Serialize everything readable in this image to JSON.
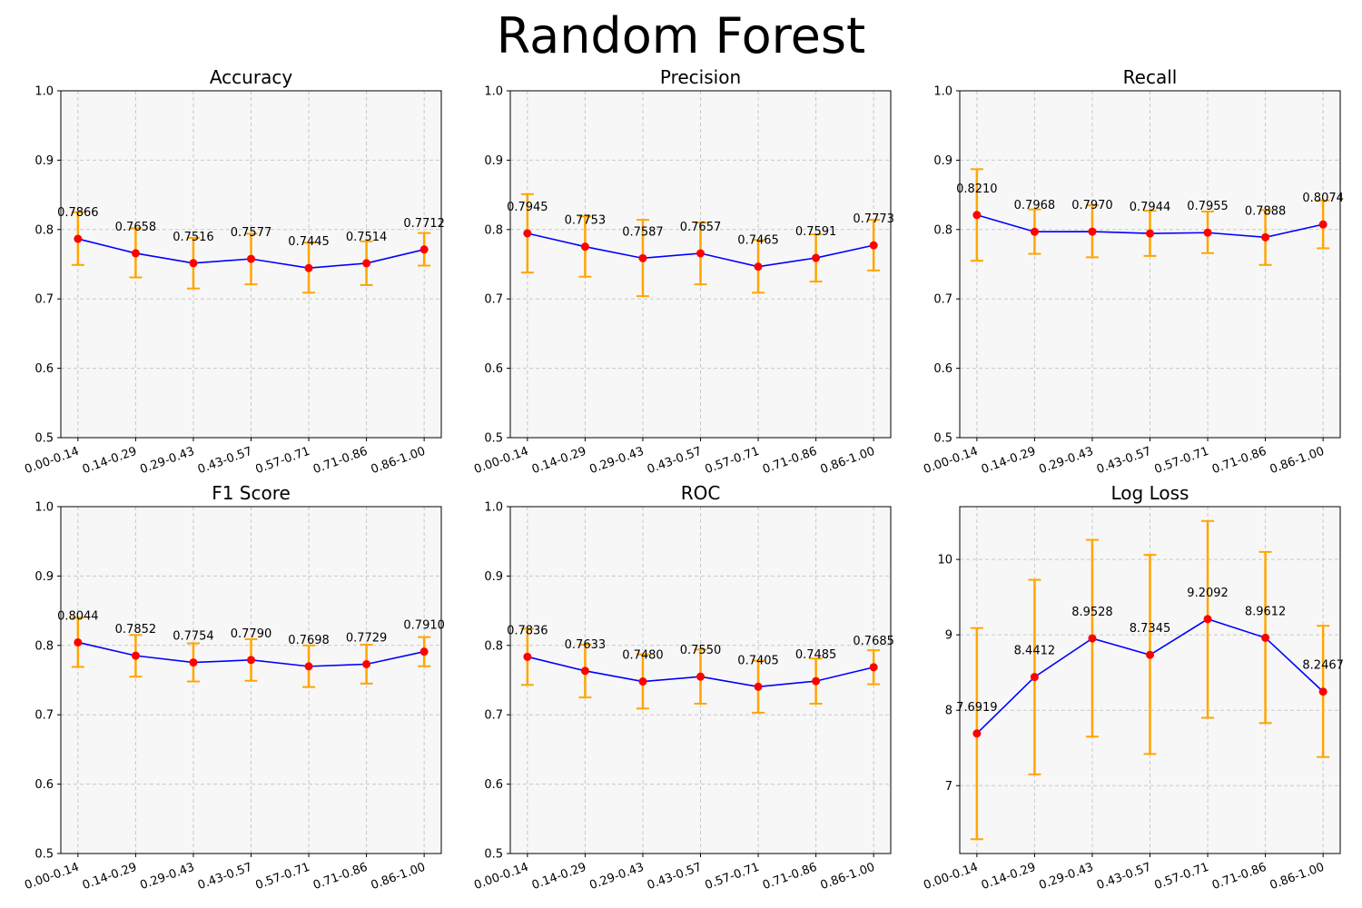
{
  "figure_title": "Random Forest",
  "colors": {
    "line": "#0000ff",
    "marker": "#ff0000",
    "errorbar": "#ffa500",
    "panel_bg": "#f7f7f7",
    "grid": "#c8c8c8"
  },
  "chart_data": [
    {
      "type": "line",
      "title": "Accuracy",
      "categories": [
        "0.00-0.14",
        "0.14-0.29",
        "0.29-0.43",
        "0.43-0.57",
        "0.57-0.71",
        "0.71-0.86",
        "0.86-1.00"
      ],
      "values": [
        0.7866,
        0.7658,
        0.7516,
        0.7577,
        0.7445,
        0.7514,
        0.7712
      ],
      "err_low": [
        0.749,
        0.731,
        0.715,
        0.721,
        0.709,
        0.72,
        0.748
      ],
      "err_high": [
        0.825,
        0.802,
        0.788,
        0.794,
        0.781,
        0.783,
        0.795
      ],
      "labels": [
        "0.7866",
        "0.7658",
        "0.7516",
        "0.7577",
        "0.7445",
        "0.7514",
        "0.7712"
      ],
      "ylim": [
        0.5,
        1.0
      ],
      "yticks": [
        "0.5",
        "0.6",
        "0.7",
        "0.8",
        "0.9",
        "1.0"
      ],
      "grid": true
    },
    {
      "type": "line",
      "title": "Precision",
      "categories": [
        "0.00-0.14",
        "0.14-0.29",
        "0.29-0.43",
        "0.43-0.57",
        "0.57-0.71",
        "0.71-0.86",
        "0.86-1.00"
      ],
      "values": [
        0.7945,
        0.7753,
        0.7587,
        0.7657,
        0.7465,
        0.7591,
        0.7773
      ],
      "err_low": [
        0.738,
        0.732,
        0.704,
        0.721,
        0.709,
        0.725,
        0.741
      ],
      "err_high": [
        0.851,
        0.819,
        0.814,
        0.81,
        0.785,
        0.793,
        0.814
      ],
      "labels": [
        "0.7945",
        "0.7753",
        "0.7587",
        "0.7657",
        "0.7465",
        "0.7591",
        "0.7773"
      ],
      "ylim": [
        0.5,
        1.0
      ],
      "yticks": [
        "0.5",
        "0.6",
        "0.7",
        "0.8",
        "0.9",
        "1.0"
      ],
      "grid": true
    },
    {
      "type": "line",
      "title": "Recall",
      "categories": [
        "0.00-0.14",
        "0.14-0.29",
        "0.29-0.43",
        "0.43-0.57",
        "0.57-0.71",
        "0.71-0.86",
        "0.86-1.00"
      ],
      "values": [
        0.821,
        0.7968,
        0.797,
        0.7944,
        0.7955,
        0.7888,
        0.8074
      ],
      "err_low": [
        0.755,
        0.765,
        0.76,
        0.762,
        0.766,
        0.749,
        0.773
      ],
      "err_high": [
        0.887,
        0.829,
        0.835,
        0.827,
        0.826,
        0.828,
        0.842
      ],
      "labels": [
        "0.8210",
        "0.7968",
        "0.7970",
        "0.7944",
        "0.7955",
        "0.7888",
        "0.8074"
      ],
      "ylim": [
        0.5,
        1.0
      ],
      "yticks": [
        "0.5",
        "0.6",
        "0.7",
        "0.8",
        "0.9",
        "1.0"
      ],
      "grid": true
    },
    {
      "type": "line",
      "title": "F1 Score",
      "categories": [
        "0.00-0.14",
        "0.14-0.29",
        "0.29-0.43",
        "0.43-0.57",
        "0.57-0.71",
        "0.71-0.86",
        "0.86-1.00"
      ],
      "values": [
        0.8044,
        0.7852,
        0.7754,
        0.779,
        0.7698,
        0.7729,
        0.791
      ],
      "err_low": [
        0.769,
        0.755,
        0.748,
        0.749,
        0.74,
        0.745,
        0.77
      ],
      "err_high": [
        0.84,
        0.815,
        0.803,
        0.809,
        0.8,
        0.801,
        0.812
      ],
      "labels": [
        "0.8044",
        "0.7852",
        "0.7754",
        "0.7790",
        "0.7698",
        "0.7729",
        "0.7910"
      ],
      "ylim": [
        0.5,
        1.0
      ],
      "yticks": [
        "0.5",
        "0.6",
        "0.7",
        "0.8",
        "0.9",
        "1.0"
      ],
      "grid": true
    },
    {
      "type": "line",
      "title": "ROC",
      "categories": [
        "0.00-0.14",
        "0.14-0.29",
        "0.29-0.43",
        "0.43-0.57",
        "0.57-0.71",
        "0.71-0.86",
        "0.86-1.00"
      ],
      "values": [
        0.7836,
        0.7633,
        0.748,
        0.755,
        0.7405,
        0.7485,
        0.7685
      ],
      "err_low": [
        0.743,
        0.725,
        0.709,
        0.716,
        0.703,
        0.716,
        0.744
      ],
      "err_high": [
        0.824,
        0.801,
        0.787,
        0.794,
        0.778,
        0.781,
        0.793
      ],
      "labels": [
        "0.7836",
        "0.7633",
        "0.7480",
        "0.7550",
        "0.7405",
        "0.7485",
        "0.7685"
      ],
      "ylim": [
        0.5,
        1.0
      ],
      "yticks": [
        "0.5",
        "0.6",
        "0.7",
        "0.8",
        "0.9",
        "1.0"
      ],
      "grid": true
    },
    {
      "type": "line",
      "title": "Log Loss",
      "categories": [
        "0.00-0.14",
        "0.14-0.29",
        "0.29-0.43",
        "0.43-0.57",
        "0.57-0.71",
        "0.71-0.86",
        "0.86-1.00"
      ],
      "values": [
        7.6919,
        8.4412,
        8.9528,
        8.7345,
        9.2092,
        8.9612,
        8.2467
      ],
      "err_low": [
        6.29,
        7.15,
        7.65,
        7.42,
        7.9,
        7.83,
        7.38
      ],
      "err_high": [
        9.09,
        9.73,
        10.26,
        10.06,
        10.51,
        10.1,
        9.12
      ],
      "labels": [
        "7.6919",
        "8.4412",
        "8.9528",
        "8.7345",
        "9.2092",
        "8.9612",
        "8.2467"
      ],
      "ylim": [
        6.1,
        10.7
      ],
      "yticks": [
        "7",
        "8",
        "9",
        "10"
      ],
      "grid": true
    }
  ]
}
